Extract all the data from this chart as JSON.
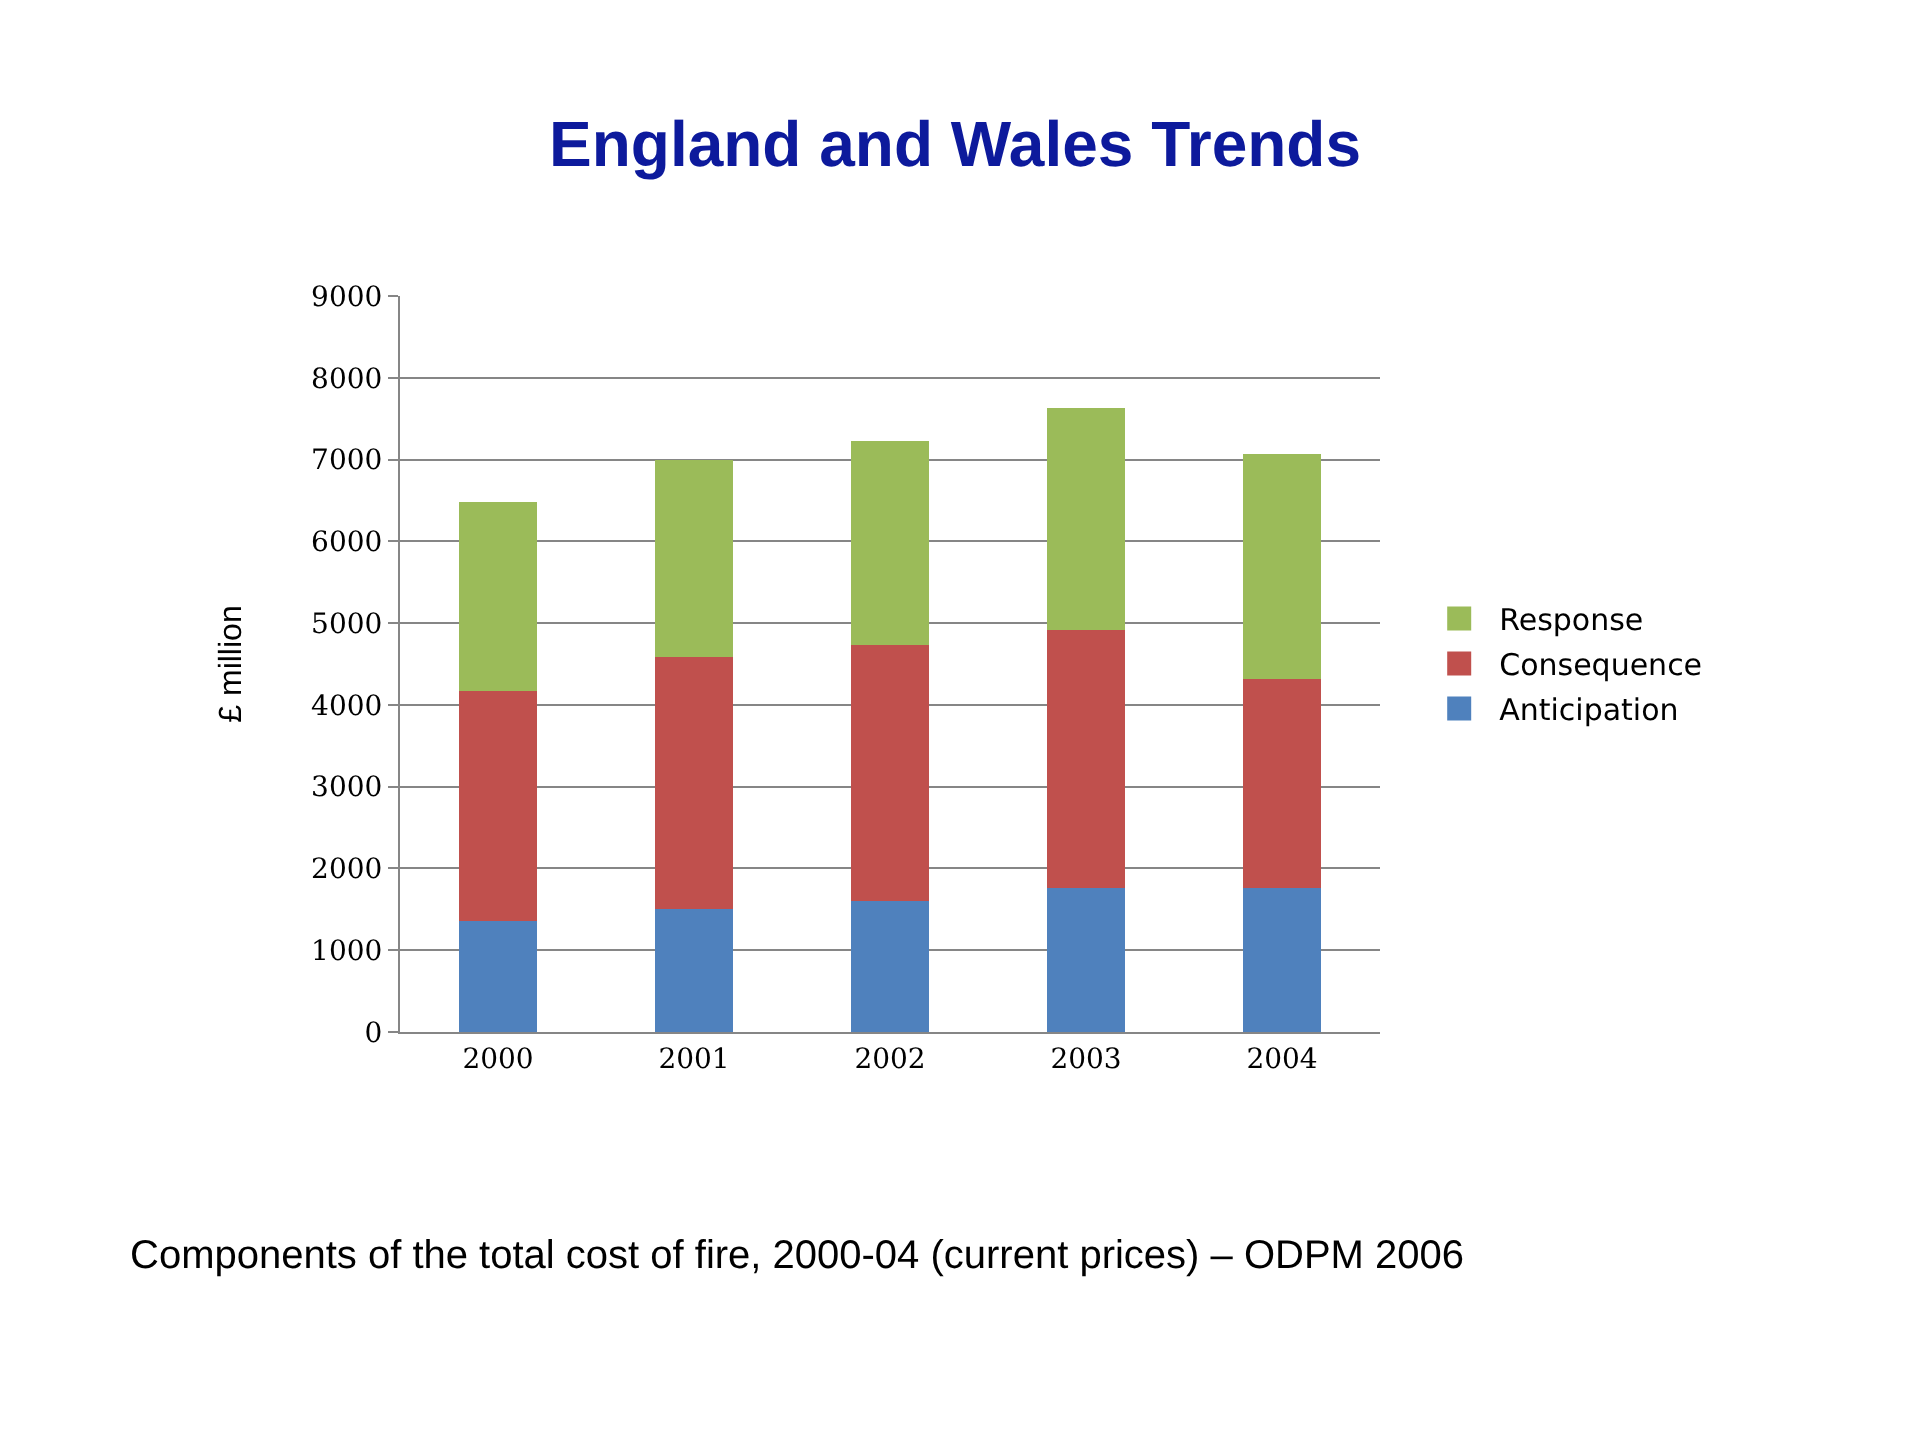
{
  "chart_data": {
    "type": "bar",
    "title": "England and Wales Trends",
    "ylabel": "£ million",
    "categories": [
      "2000",
      "2001",
      "2002",
      "2003",
      "2004"
    ],
    "series": [
      {
        "name": "Anticipation",
        "color": "#4f81bd",
        "values": [
          1360,
          1500,
          1600,
          1760,
          1760
        ]
      },
      {
        "name": "Consequence",
        "color": "#c0504d",
        "values": [
          2810,
          3080,
          3130,
          3160,
          2560
        ]
      },
      {
        "name": "Response",
        "color": "#9bbb59",
        "values": [
          2310,
          2420,
          2500,
          2710,
          2750
        ]
      }
    ],
    "stacked": true,
    "ylim": [
      0,
      9000
    ],
    "yticks": [
      0,
      1000,
      2000,
      3000,
      4000,
      5000,
      6000,
      7000,
      8000,
      9000
    ],
    "grid": "y",
    "legend": "right",
    "annotations": [
      "Components of the total cost of fire, 2000-04 (current prices) – ODPM 2006"
    ]
  }
}
